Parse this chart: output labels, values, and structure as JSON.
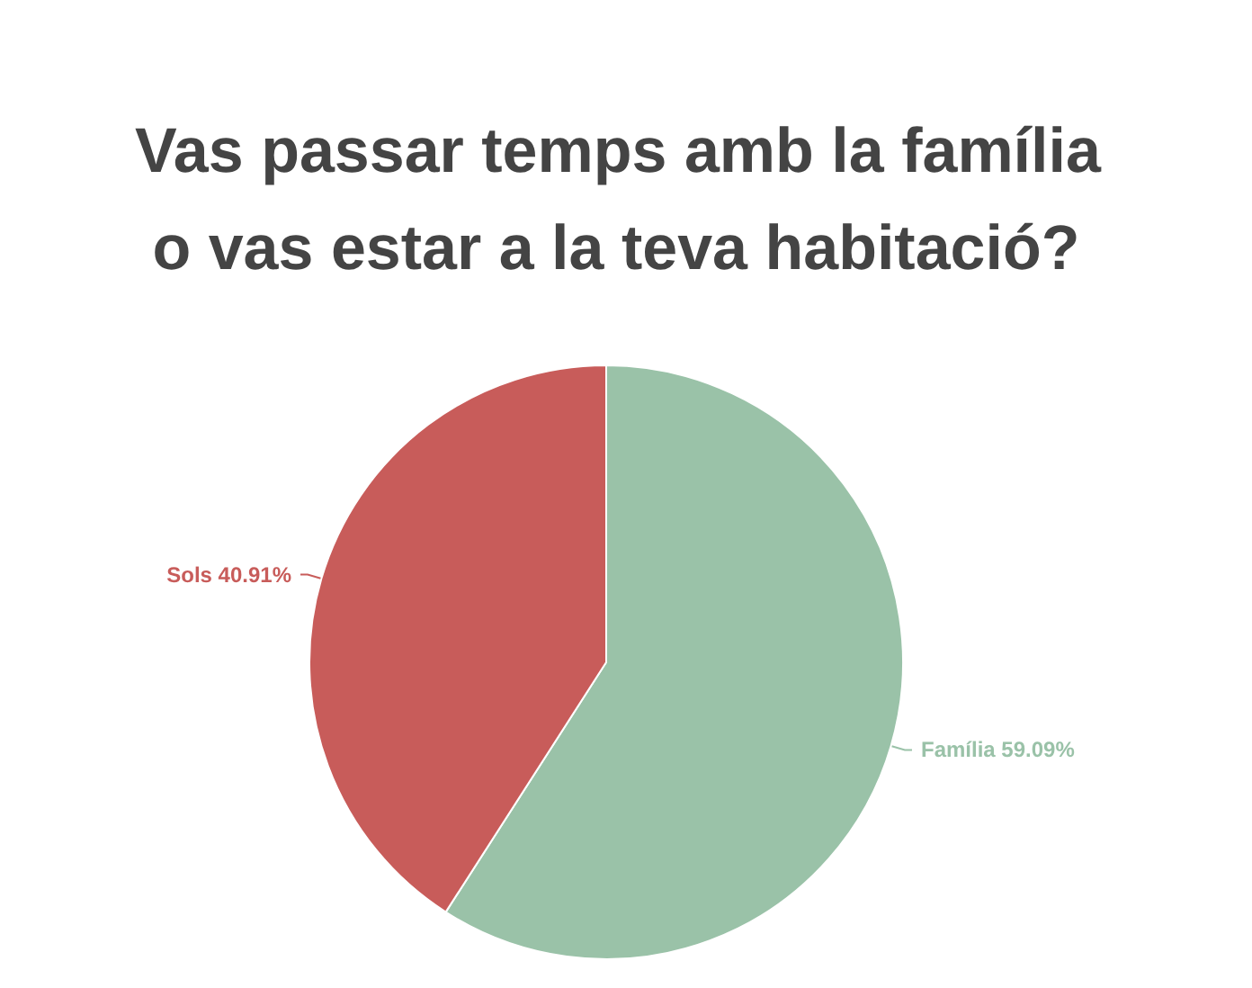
{
  "chart_data": {
    "type": "pie",
    "title": "Vas passar temps amb la família o vas estar a la teva habitació?",
    "categories": [
      "Família",
      "Sols"
    ],
    "values": [
      59.09,
      40.91
    ],
    "colors": [
      "#9ac2a8",
      "#c85c5a"
    ],
    "value_labels": [
      "59.09%",
      "40.91%"
    ],
    "legend": false
  }
}
